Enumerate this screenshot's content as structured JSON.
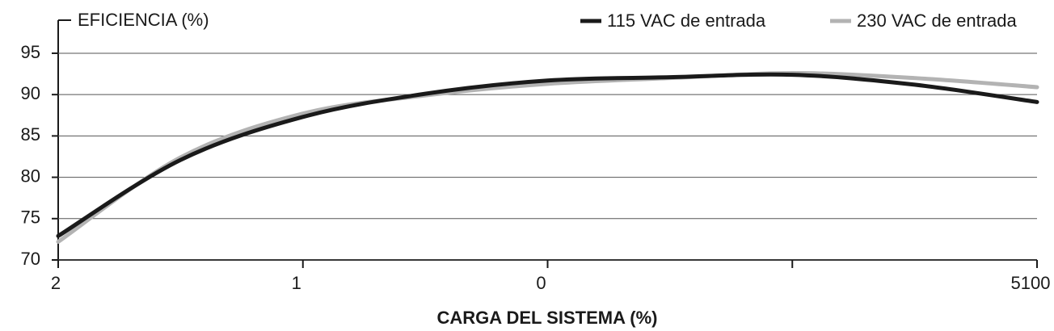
{
  "chart_data": {
    "type": "line",
    "y_label": "EFICIENCIA (%)",
    "x_label": "CARGA DEL SISTEMA (%)",
    "categories": [
      "2",
      null,
      "1",
      null,
      "0",
      null,
      null,
      null,
      "5100"
    ],
    "series": [
      {
        "name": "115 VAC de entrada",
        "color": "#1a1a1a",
        "values": [
          72.9,
          82.1,
          87.3,
          90.1,
          91.7,
          92.1,
          92.4,
          91.2,
          89.1
        ]
      },
      {
        "name": "230 VAC de entrada",
        "color": "#b3b3b3",
        "values": [
          72.2,
          82.4,
          87.7,
          89.9,
          91.3,
          92.0,
          92.6,
          92.0,
          90.9
        ]
      }
    ],
    "ylim": [
      70,
      99
    ],
    "yticks": [
      70,
      75,
      80,
      85,
      90,
      95
    ],
    "grid": true
  }
}
